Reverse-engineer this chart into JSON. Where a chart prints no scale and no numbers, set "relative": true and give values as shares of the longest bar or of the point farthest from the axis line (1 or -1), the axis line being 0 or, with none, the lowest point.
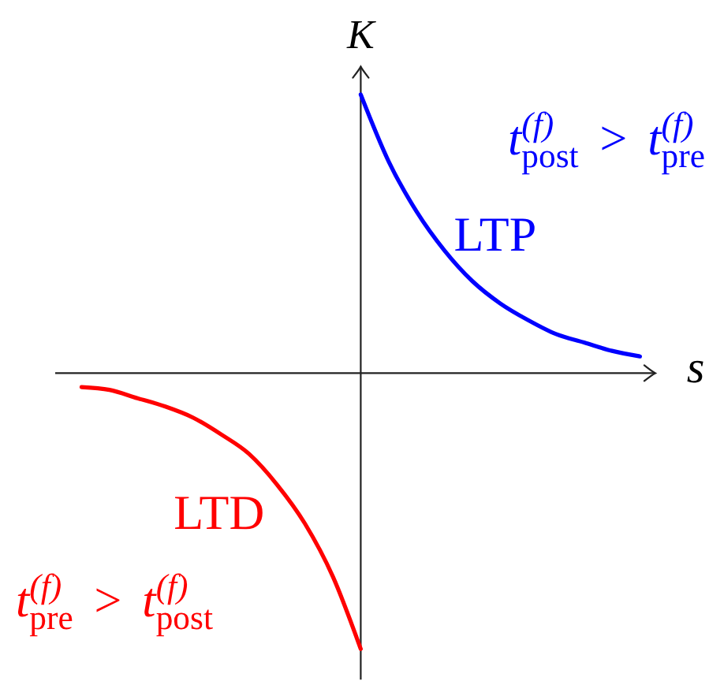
{
  "chart_data": {
    "type": "line",
    "relative": true,
    "xlabel": "s",
    "ylabel": "K",
    "categories": [
      null,
      null,
      null,
      null,
      null,
      null,
      null,
      null,
      null,
      null,
      null,
      null,
      null,
      null,
      null,
      null,
      null,
      null,
      null,
      null,
      null
    ],
    "series": [
      {
        "name": "LTP",
        "color": "#0000ff",
        "values": [
          null,
          null,
          null,
          null,
          null,
          null,
          null,
          null,
          null,
          null,
          1.0,
          0.76,
          0.58,
          0.44,
          0.33,
          0.25,
          0.19,
          0.14,
          0.11,
          0.08,
          0.06
        ]
      },
      {
        "name": "LTD",
        "color": "#ff0000",
        "values": [
          -0.05,
          -0.06,
          -0.09,
          -0.12,
          -0.16,
          -0.22,
          -0.29,
          -0.4,
          -0.54,
          -0.73,
          -0.99,
          null,
          null,
          null,
          null,
          null,
          null,
          null,
          null,
          null,
          null
        ]
      }
    ],
    "annotations": [
      "t$^{(f)}$$_{post}$ > t$^{(f)}$$_{pre}$",
      "t$^{(f)}$$_{pre}$ > t$^{(f)}$$_{post}$"
    ]
  }
}
